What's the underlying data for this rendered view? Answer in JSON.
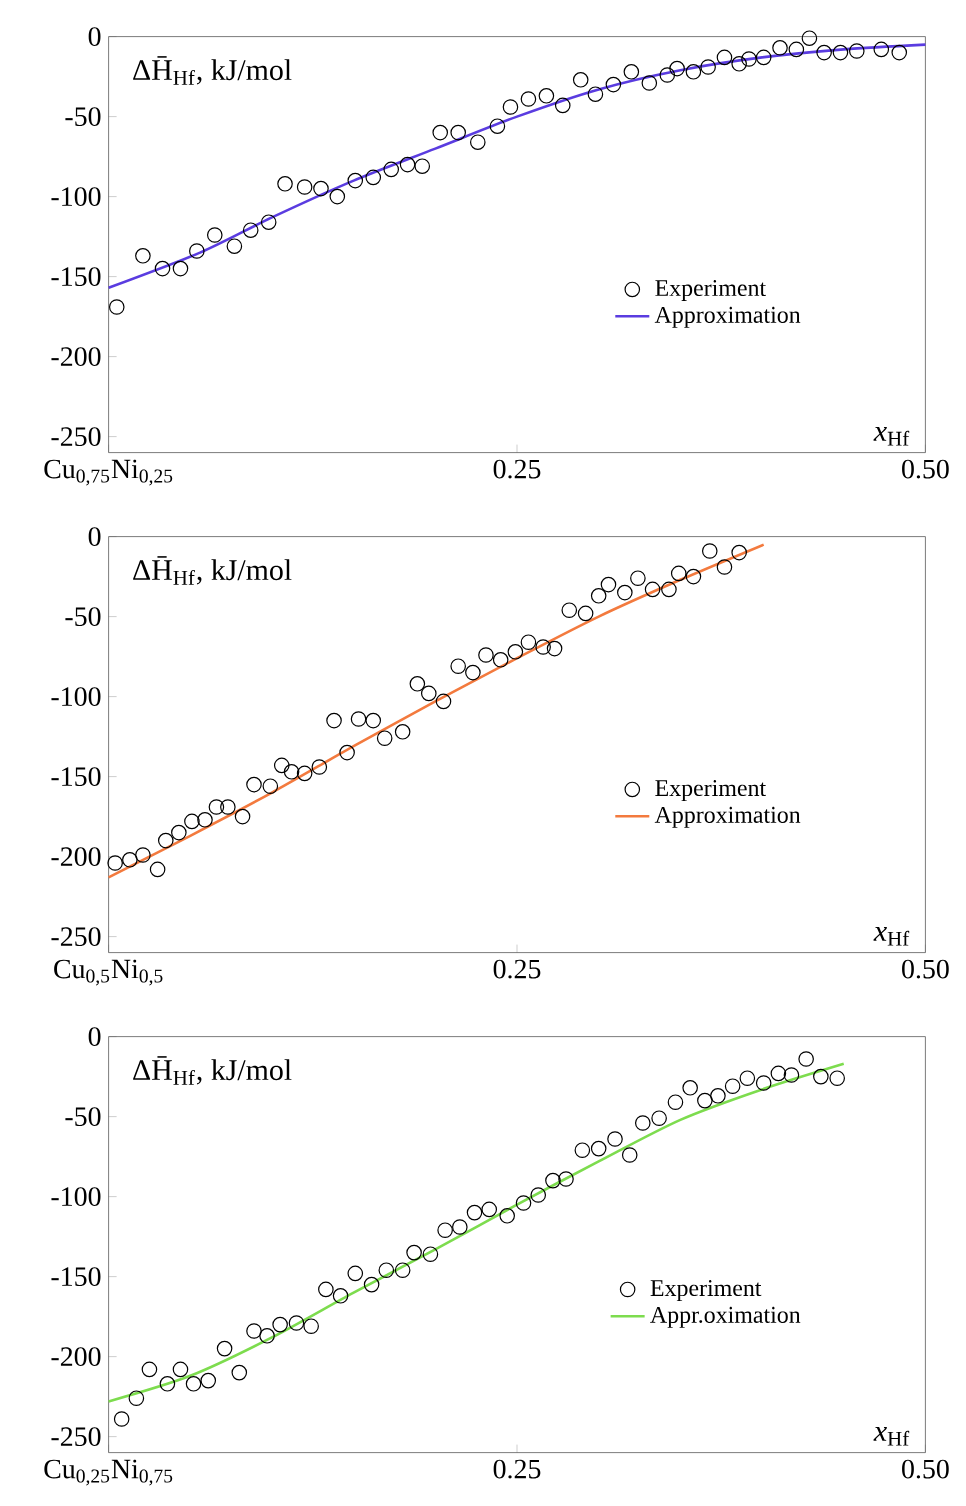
{
  "chart_data": [
    {
      "type": "scatter",
      "ylabel": "ΔH̄$_{Hf}$, kJ/mol",
      "xlabel": "*x*$_{Hf}$",
      "xlim": [
        0,
        0.5
      ],
      "ylim": [
        -260,
        0
      ],
      "xticks": [
        {
          "value": 0,
          "label": "Cu$_{0,75}$Ni$_{0,25}$"
        },
        {
          "value": 0.25,
          "label": "0.25"
        },
        {
          "value": 0.5,
          "label": "0.50"
        }
      ],
      "yticks": [
        -250,
        -200,
        -150,
        -100,
        -50,
        0
      ],
      "legend": "right",
      "series": [
        {
          "name": "Experiment",
          "marker": "circle",
          "color": "#000000",
          "x": [
            0.005,
            0.021,
            0.033,
            0.044,
            0.054,
            0.065,
            0.077,
            0.087,
            0.098,
            0.108,
            0.12,
            0.13,
            0.14,
            0.151,
            0.162,
            0.173,
            0.183,
            0.192,
            0.203,
            0.214,
            0.226,
            0.238,
            0.246,
            0.257,
            0.268,
            0.278,
            0.289,
            0.298,
            0.309,
            0.32,
            0.331,
            0.342,
            0.348,
            0.358,
            0.367,
            0.377,
            0.386,
            0.392,
            0.401,
            0.411,
            0.421,
            0.429,
            0.438,
            0.448,
            0.458,
            0.473,
            0.484
          ],
          "values": [
            -169,
            -137,
            -145,
            -145,
            -134,
            -124,
            -131,
            -121,
            -116,
            -92,
            -94,
            -95,
            -100,
            -90,
            -88,
            -83,
            -80,
            -81,
            -60,
            -60,
            -66,
            -56,
            -44,
            -39,
            -37,
            -43,
            -27,
            -36,
            -30,
            -22,
            -29,
            -24,
            -20,
            -22,
            -19,
            -13,
            -17,
            -14,
            -13,
            -7,
            -8,
            -1,
            -10,
            -10,
            -9,
            -8,
            -10
          ]
        },
        {
          "name": "Approximation",
          "type": "line",
          "color": "#5a3ce0",
          "x": [
            0,
            0.056,
            0.1,
            0.15,
            0.2,
            0.25,
            0.3,
            0.35,
            0.4,
            0.45,
            0.5
          ],
          "values": [
            -157,
            -135,
            -113,
            -90,
            -70,
            -50,
            -33,
            -21,
            -13,
            -8,
            -5
          ]
        }
      ]
    },
    {
      "type": "scatter",
      "ylabel": "ΔH̄$_{Hf}$, kJ/mol",
      "xlabel": "*x*$_{Hf}$",
      "xlim": [
        0,
        0.5
      ],
      "ylim": [
        -260,
        0
      ],
      "xticks": [
        {
          "value": 0,
          "label": "Cu$_{0,5}$Ni$_{0,5}$"
        },
        {
          "value": 0.25,
          "label": "0.25"
        },
        {
          "value": 0.5,
          "label": "0.50"
        }
      ],
      "yticks": [
        -250,
        -200,
        -150,
        -100,
        -50,
        0
      ],
      "legend": "right",
      "series": [
        {
          "name": "Experiment",
          "marker": "circle",
          "color": "#000000",
          "x": [
            0.004,
            0.013,
            0.021,
            0.03,
            0.035,
            0.043,
            0.051,
            0.059,
            0.066,
            0.073,
            0.082,
            0.089,
            0.099,
            0.106,
            0.112,
            0.12,
            0.129,
            0.138,
            0.146,
            0.153,
            0.162,
            0.169,
            0.18,
            0.189,
            0.196,
            0.205,
            0.214,
            0.223,
            0.231,
            0.24,
            0.249,
            0.257,
            0.266,
            0.273,
            0.282,
            0.292,
            0.3,
            0.306,
            0.316,
            0.324,
            0.333,
            0.343,
            0.349,
            0.358,
            0.368,
            0.377,
            0.386
          ],
          "values": [
            -204,
            -202,
            -199,
            -208,
            -190,
            -185,
            -178,
            -177,
            -169,
            -169,
            -175,
            -155,
            -156,
            -143,
            -147,
            -148,
            -144,
            -115,
            -135,
            -114,
            -115,
            -126,
            -122,
            -92,
            -98,
            -103,
            -81,
            -85,
            -74,
            -77,
            -72,
            -66,
            -69,
            -70,
            -46,
            -48,
            -37,
            -30,
            -35,
            -26,
            -33,
            -33,
            -23,
            -25,
            -9,
            -19,
            -10
          ]
        },
        {
          "name": "Approximation",
          "type": "line",
          "color": "#f37a3e",
          "x": [
            0,
            0.05,
            0.1,
            0.15,
            0.2,
            0.25,
            0.3,
            0.35,
            0.401
          ],
          "values": [
            -213,
            -187,
            -160,
            -131,
            -103,
            -76,
            -50,
            -27,
            -5
          ]
        }
      ]
    },
    {
      "type": "scatter",
      "ylabel": "ΔH̄$_{Hf}$, kJ/mol",
      "xlabel": "*x*$_{Hf}$",
      "xlim": [
        0,
        0.5
      ],
      "ylim": [
        -260,
        0
      ],
      "xticks": [
        {
          "value": 0,
          "label": "Cu$_{0,25}$Ni$_{0,75}$"
        },
        {
          "value": 0.25,
          "label": "0.25"
        },
        {
          "value": 0.5,
          "label": "0.50"
        }
      ],
      "yticks": [
        -250,
        -200,
        -150,
        -100,
        -50,
        0
      ],
      "legend": "right",
      "series": [
        {
          "name": "Experiment",
          "marker": "circle",
          "color": "#000000",
          "x": [
            0.008,
            0.017,
            0.025,
            0.036,
            0.044,
            0.052,
            0.061,
            0.071,
            0.08,
            0.089,
            0.097,
            0.105,
            0.115,
            0.124,
            0.133,
            0.142,
            0.151,
            0.161,
            0.17,
            0.18,
            0.187,
            0.197,
            0.206,
            0.215,
            0.224,
            0.233,
            0.244,
            0.254,
            0.263,
            0.272,
            0.28,
            0.29,
            0.3,
            0.31,
            0.319,
            0.327,
            0.337,
            0.347,
            0.356,
            0.365,
            0.373,
            0.382,
            0.391,
            0.401,
            0.41,
            0.418,
            0.427,
            0.436,
            0.446
          ],
          "values": [
            -239,
            -226,
            -208,
            -217,
            -208,
            -217,
            -215,
            -195,
            -210,
            -184,
            -187,
            -180,
            -179,
            -181,
            -158,
            -162,
            -148,
            -155,
            -146,
            -146,
            -135,
            -136,
            -121,
            -119,
            -110,
            -108,
            -112,
            -104,
            -99,
            -90,
            -89,
            -71,
            -70,
            -64,
            -74,
            -54,
            -51,
            -41,
            -32,
            -40,
            -37,
            -31,
            -26,
            -29,
            -23,
            -24,
            -14,
            -25,
            -26
          ]
        },
        {
          "name": "Appr.oximation",
          "type": "line",
          "color": "#7ddc4e",
          "x": [
            0,
            0.05,
            0.1,
            0.15,
            0.2,
            0.25,
            0.3,
            0.35,
            0.4,
            0.45
          ],
          "values": [
            -228,
            -212,
            -188,
            -160,
            -133,
            -105,
            -78,
            -52,
            -33,
            -17
          ]
        }
      ]
    }
  ]
}
